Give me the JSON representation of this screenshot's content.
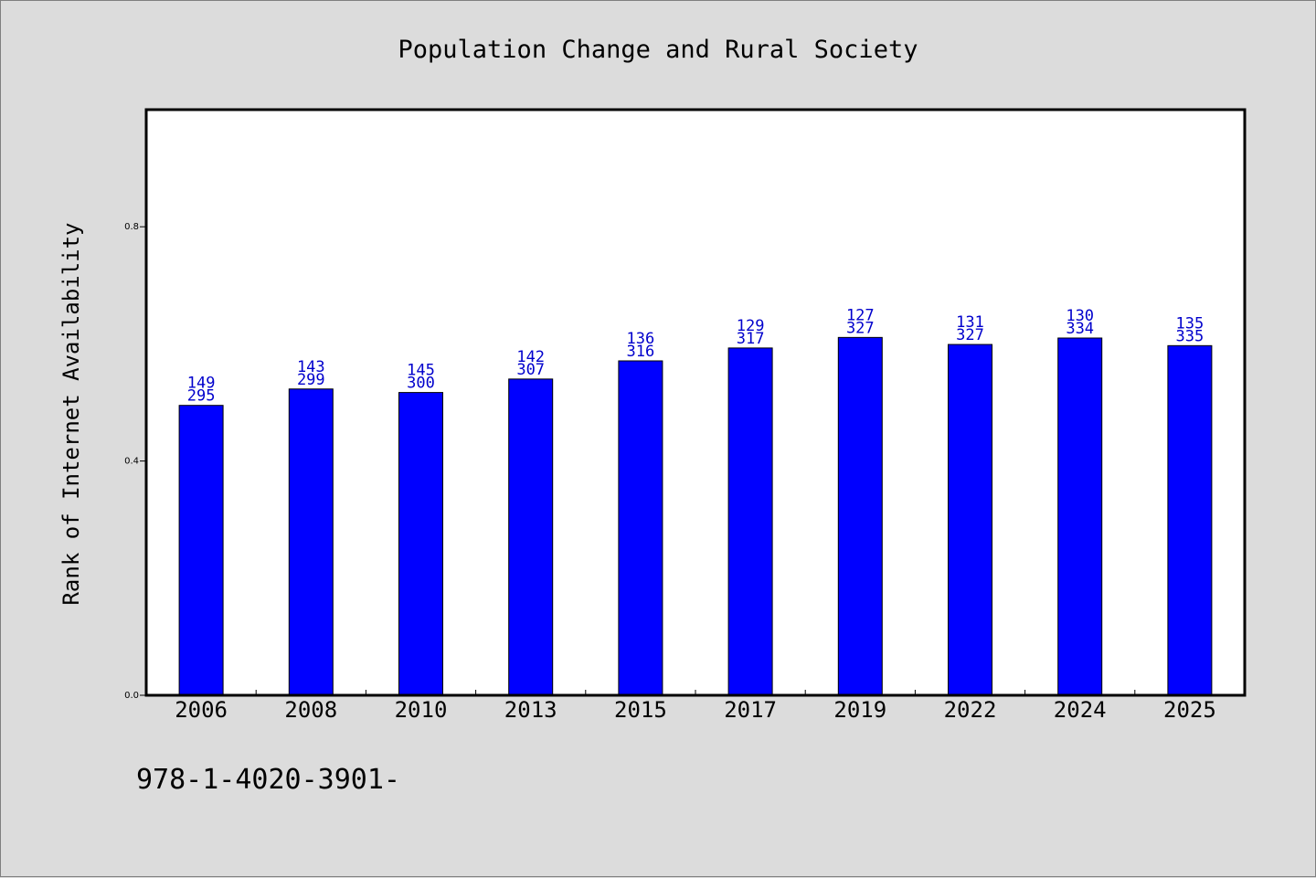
{
  "chart_data": {
    "type": "bar",
    "title": "Population Change and Rural Society",
    "xlabel": "",
    "ylabel": "Rank of Internet Availability",
    "categories": [
      "2006",
      "2008",
      "2010",
      "2013",
      "2015",
      "2017",
      "2019",
      "2022",
      "2024",
      "2025"
    ],
    "values": [
      0.495,
      0.523,
      0.517,
      0.54,
      0.571,
      0.593,
      0.611,
      0.599,
      0.61,
      0.597
    ],
    "data_labels_top": [
      "149",
      "143",
      "145",
      "142",
      "136",
      "129",
      "127",
      "131",
      "130",
      "135"
    ],
    "data_labels_bottom": [
      "295",
      "299",
      "300",
      "307",
      "316",
      "317",
      "327",
      "327",
      "334",
      "335"
    ],
    "ylim": [
      0.0,
      1.0
    ],
    "yticks": [
      0.0,
      0.4,
      0.8
    ],
    "ytick_labels": [
      "0.0",
      "0.4",
      "0.8"
    ],
    "grid": false,
    "legend": "none",
    "bar_color": "#0000ff",
    "label_color": "#0000cc"
  },
  "footer": {
    "text": "978-1-4020-3901-"
  }
}
